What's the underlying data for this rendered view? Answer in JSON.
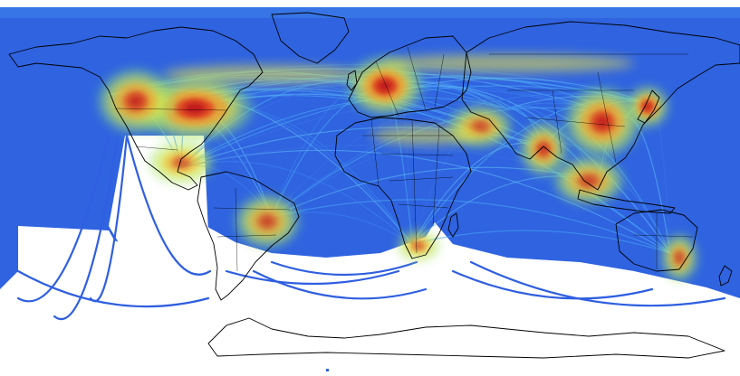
{
  "map": {
    "type": "global flight-route density heatmap",
    "projection": "equirectangular",
    "color_scale": [
      "#2a52d8",
      "#3b8cf0",
      "#4cc6f2",
      "#8de37a",
      "#f5e83a",
      "#f59a2a",
      "#e0361c",
      "#b8101a"
    ],
    "background_color": "#ffffff",
    "outline_color": "#000000",
    "hotspots": [
      {
        "region": "eastern-united-states",
        "intensity": 1.0
      },
      {
        "region": "western-united-states",
        "intensity": 0.75
      },
      {
        "region": "western-europe",
        "intensity": 1.0
      },
      {
        "region": "east-asia",
        "intensity": 0.85
      },
      {
        "region": "japan",
        "intensity": 0.9
      },
      {
        "region": "india",
        "intensity": 0.7
      },
      {
        "region": "southeast-asia",
        "intensity": 0.6
      },
      {
        "region": "brazil",
        "intensity": 0.55
      },
      {
        "region": "southern-africa",
        "intensity": 0.5
      },
      {
        "region": "eastern-australia",
        "intensity": 0.55
      },
      {
        "region": "middle-east",
        "intensity": 0.55
      },
      {
        "region": "mexico-caribbean",
        "intensity": 0.5
      }
    ]
  }
}
